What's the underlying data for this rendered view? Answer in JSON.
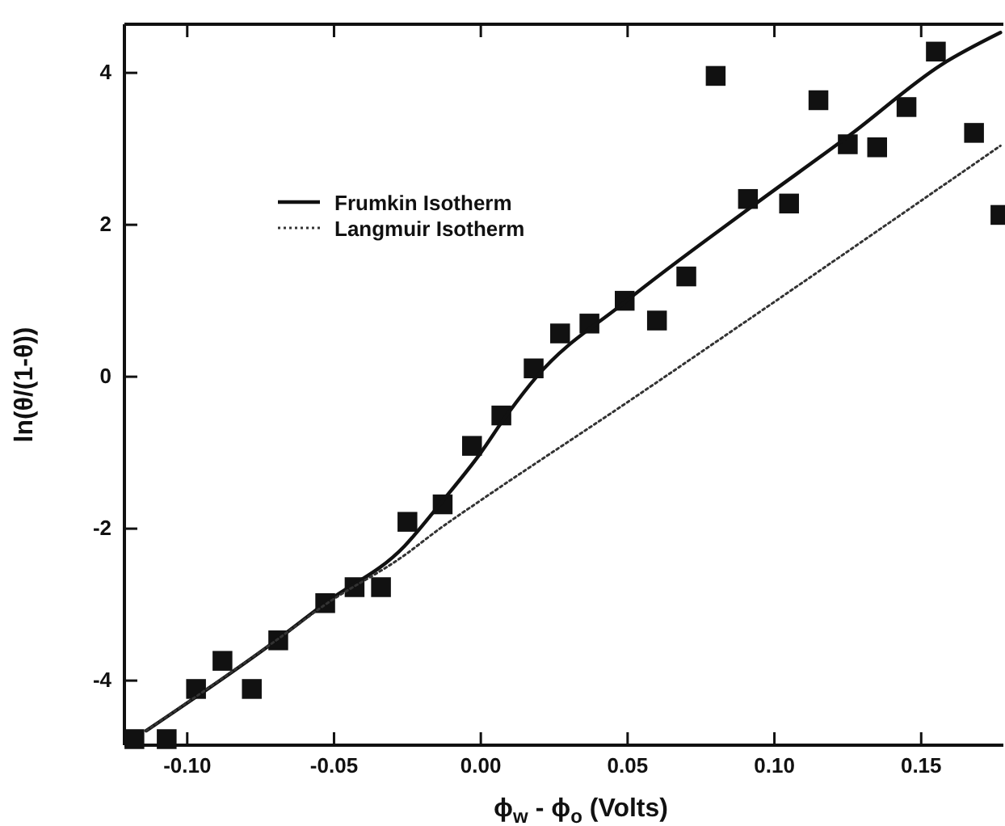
{
  "chart_data": {
    "type": "scatter",
    "xlabel": "ϕ$_{w}$ - ϕ$_{o}$ (Volts)",
    "ylabel": "ln(θ/(1-θ))",
    "xlim": [
      -0.1214,
      0.178
    ],
    "ylim": [
      -4.85,
      4.64
    ],
    "xticks": [
      {
        "value": -0.1,
        "label": "-0.10"
      },
      {
        "value": -0.05,
        "label": "-0.05"
      },
      {
        "value": 0,
        "label": "0.00"
      },
      {
        "value": 0.05,
        "label": "0.05"
      },
      {
        "value": 0.1,
        "label": "0.10"
      },
      {
        "value": 0.15,
        "label": "0.15"
      }
    ],
    "yticks": [
      -4,
      -2,
      0,
      2,
      4
    ],
    "grid": false,
    "legend": "top left",
    "series": [
      {
        "marker": "square",
        "color": "#111111",
        "x": [
          -0.118,
          -0.107,
          -0.097,
          -0.088,
          -0.078,
          -0.069,
          -0.053,
          -0.043,
          -0.034,
          -0.025,
          -0.013,
          -0.003,
          0.007,
          0.018,
          0.027,
          0.037,
          0.049,
          0.06,
          0.07,
          0.08,
          0.091,
          0.105,
          0.115,
          0.125,
          0.135,
          0.145,
          0.155,
          0.168,
          0.177
        ],
        "values": [
          -4.77,
          -4.77,
          -4.11,
          -3.74,
          -4.11,
          -3.47,
          -2.98,
          -2.77,
          -2.77,
          -1.91,
          -1.68,
          -0.91,
          -0.51,
          0.11,
          0.57,
          0.7,
          1.0,
          0.74,
          1.32,
          3.96,
          2.34,
          2.28,
          3.64,
          3.06,
          3.02,
          3.55,
          4.28,
          3.21,
          2.13
        ]
      },
      {
        "type": "line",
        "name": "Frumkin Isotherm",
        "color": "#111111",
        "line_style": "solid",
        "x": [
          -0.114,
          -0.069,
          -0.053,
          -0.026,
          -0.014,
          0.0,
          0.008,
          0.019,
          0.049,
          0.093,
          0.126,
          0.157,
          0.177
        ],
        "values": [
          -4.66,
          -3.45,
          -2.98,
          -2.23,
          -1.68,
          -1.0,
          -0.55,
          0.0,
          0.98,
          2.26,
          3.19,
          4.11,
          4.53
        ]
      },
      {
        "type": "line",
        "name": "Langmuir Isotherm",
        "color": "#333333",
        "line_style": "dotted",
        "x": [
          -0.114,
          -0.069,
          -0.053,
          -0.026,
          -0.014,
          0.001,
          0.049,
          0.093,
          0.177
        ],
        "values": [
          -4.66,
          -3.45,
          -3.0,
          -2.35,
          -2.0,
          -1.6,
          -0.36,
          0.8,
          3.04
        ]
      }
    ]
  }
}
